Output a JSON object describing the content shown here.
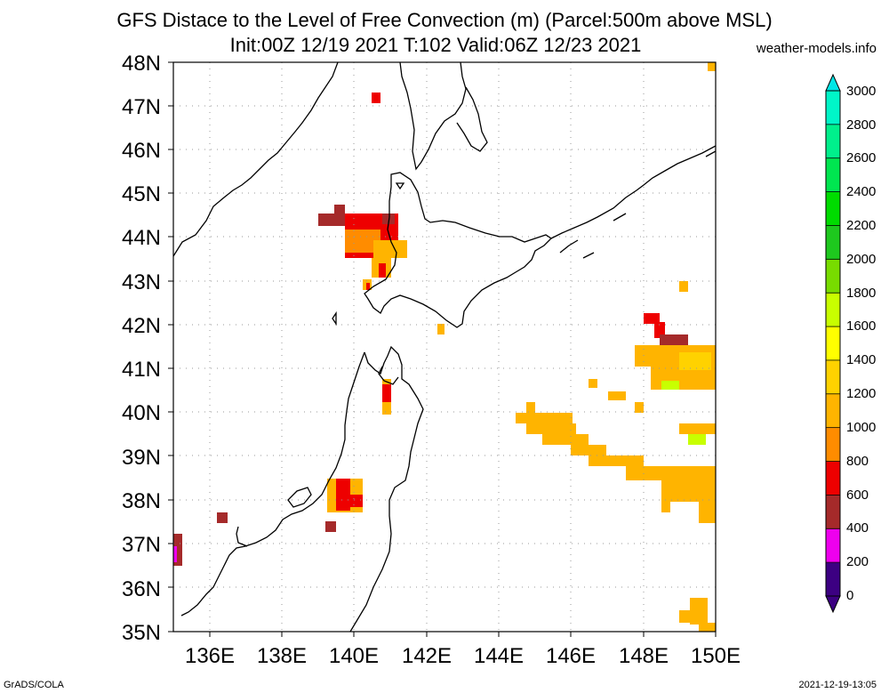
{
  "header": {
    "title": "GFS Distace to the Level of Free Convection (m) (Parcel:500m above MSL)",
    "subtitle": "Init:00Z 12/19 2021 T:102 Valid:06Z 12/23 2021",
    "source": "weather-models.info"
  },
  "footer": {
    "left": "GrADS/COLA",
    "right": "2021-12-19-13:05"
  },
  "map": {
    "lon_range": [
      135,
      150
    ],
    "lat_range": [
      35,
      48
    ],
    "lat_labels": [
      "35N",
      "36N",
      "37N",
      "38N",
      "39N",
      "40N",
      "41N",
      "42N",
      "43N",
      "44N",
      "45N",
      "46N",
      "47N",
      "48N"
    ],
    "lon_labels": [
      "136E",
      "138E",
      "140E",
      "142E",
      "144E",
      "146E",
      "148E",
      "150E"
    ],
    "grid": true
  },
  "colorbar": {
    "labels": [
      "0",
      "200",
      "400",
      "600",
      "800",
      "1000",
      "1200",
      "1400",
      "1600",
      "1800",
      "2000",
      "2200",
      "2400",
      "2600",
      "2800",
      "3000"
    ],
    "colors": [
      "#3c0082",
      "#ee00ee",
      "#a52a2a",
      "#ee0000",
      "#ff8c00",
      "#ffb400",
      "#ffd200",
      "#ffff00",
      "#c8ff00",
      "#78dc00",
      "#1ec81e",
      "#00dc00",
      "#00e650",
      "#00f08c",
      "#00f5c8",
      "#00e6e6"
    ]
  },
  "chart_data": {
    "type": "heatmap",
    "title": "GFS Distace to the Level of Free Convection (m) (Parcel:500m above MSL)",
    "units": "m",
    "cells": [
      {
        "lon": 140.6,
        "lat": 47.1,
        "value": 500
      },
      {
        "lon": 139.4,
        "lat": 44.4,
        "value": 300
      },
      {
        "lon": 139.8,
        "lat": 44.4,
        "value": 500
      },
      {
        "lon": 140.4,
        "lat": 44.3,
        "value": 500
      },
      {
        "lon": 140.9,
        "lat": 44.4,
        "value": 500
      },
      {
        "lon": 140.2,
        "lat": 43.9,
        "value": 700
      },
      {
        "lon": 140.7,
        "lat": 43.8,
        "value": 700
      },
      {
        "lon": 141.2,
        "lat": 43.6,
        "value": 900
      },
      {
        "lon": 140.8,
        "lat": 43.2,
        "value": 700
      },
      {
        "lon": 140.4,
        "lat": 42.9,
        "value": 700
      },
      {
        "lon": 149.2,
        "lat": 42.9,
        "value": 1000
      },
      {
        "lon": 142.3,
        "lat": 41.9,
        "value": 1000
      },
      {
        "lon": 148.3,
        "lat": 42.1,
        "value": 500
      },
      {
        "lon": 148.8,
        "lat": 41.6,
        "value": 500
      },
      {
        "lon": 148.8,
        "lat": 41.2,
        "value": 1100
      },
      {
        "lon": 148.8,
        "lat": 40.6,
        "value": 1500
      },
      {
        "lon": 140.8,
        "lat": 40.4,
        "value": 500
      },
      {
        "lon": 146.3,
        "lat": 40.6,
        "value": 1000
      },
      {
        "lon": 147.0,
        "lat": 40.4,
        "value": 1000
      },
      {
        "lon": 147.9,
        "lat": 40.1,
        "value": 1000
      },
      {
        "lon": 145.3,
        "lat": 39.8,
        "value": 1000
      },
      {
        "lon": 146.5,
        "lat": 39.4,
        "value": 1000
      },
      {
        "lon": 147.4,
        "lat": 39.0,
        "value": 1000
      },
      {
        "lon": 148.6,
        "lat": 38.6,
        "value": 1000
      },
      {
        "lon": 149.5,
        "lat": 38.3,
        "value": 1100
      },
      {
        "lon": 149.5,
        "lat": 39.6,
        "value": 1100
      },
      {
        "lon": 139.8,
        "lat": 38.1,
        "value": 500
      },
      {
        "lon": 136.4,
        "lat": 37.6,
        "value": 300
      },
      {
        "lon": 139.4,
        "lat": 37.4,
        "value": 300
      },
      {
        "lon": 135.1,
        "lat": 36.9,
        "value": 250
      },
      {
        "lon": 149.4,
        "lat": 35.4,
        "value": 1000
      },
      {
        "lon": 149.9,
        "lat": 47.9,
        "value": 1000
      }
    ]
  }
}
